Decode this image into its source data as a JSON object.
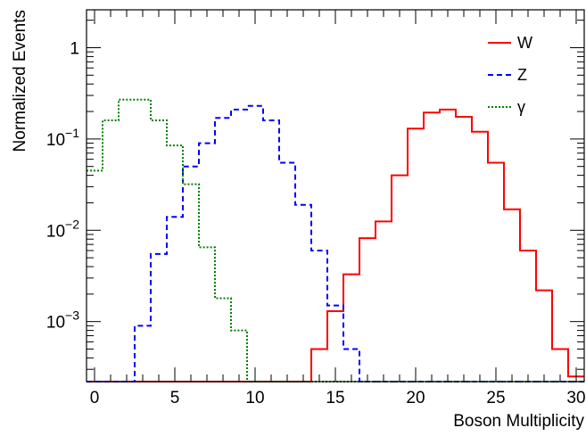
{
  "chart_data": {
    "type": "step-histogram",
    "title": "",
    "xlabel": "Boson Multiplicity",
    "ylabel": "Normalized Events",
    "xlim": [
      -0.5,
      30.5
    ],
    "ylim": [
      0.00022,
      2.6
    ],
    "yscale": "log",
    "x_ticks": [
      0,
      5,
      10,
      15,
      20,
      25,
      30
    ],
    "y_ticks": [
      {
        "value": 1,
        "base": "1",
        "exp": ""
      },
      {
        "value": 0.1,
        "base": "10",
        "exp": "−1"
      },
      {
        "value": 0.01,
        "base": "10",
        "exp": "−2"
      },
      {
        "value": 0.001,
        "base": "10",
        "exp": "−3"
      }
    ],
    "bin_edges_start": -0.5,
    "bin_width": 1,
    "legend_position": "top-right",
    "series": [
      {
        "name": "W",
        "color": "#ff0000",
        "dash": "solid",
        "values": [
          0,
          0,
          0,
          0,
          0,
          0,
          0,
          0,
          0,
          0,
          0,
          0,
          0,
          0,
          0.0005,
          0.0013,
          0.0033,
          0.0082,
          0.0125,
          0.04,
          0.13,
          0.195,
          0.21,
          0.175,
          0.12,
          0.055,
          0.017,
          0.006,
          0.0022,
          0.0005,
          0.00025
        ]
      },
      {
        "name": "Z",
        "color": "#0000ff",
        "dash": "dashed",
        "values": [
          0,
          0,
          0,
          0.0009,
          0.0055,
          0.014,
          0.05,
          0.09,
          0.17,
          0.21,
          0.23,
          0.16,
          0.055,
          0.019,
          0.006,
          0.0015,
          0.0005,
          0,
          0,
          0,
          0,
          0,
          0,
          0,
          0,
          0,
          0,
          0,
          0,
          0,
          0
        ]
      },
      {
        "name": "γ",
        "color": "#008000",
        "dash": "dotted",
        "values": [
          0.045,
          0.16,
          0.27,
          0.27,
          0.16,
          0.085,
          0.032,
          0.0065,
          0.0018,
          0.0008,
          0,
          0,
          0,
          0,
          0,
          0,
          0,
          0,
          0,
          0,
          0,
          0,
          0,
          0,
          0,
          0,
          0,
          0,
          0,
          0,
          0
        ]
      }
    ]
  }
}
